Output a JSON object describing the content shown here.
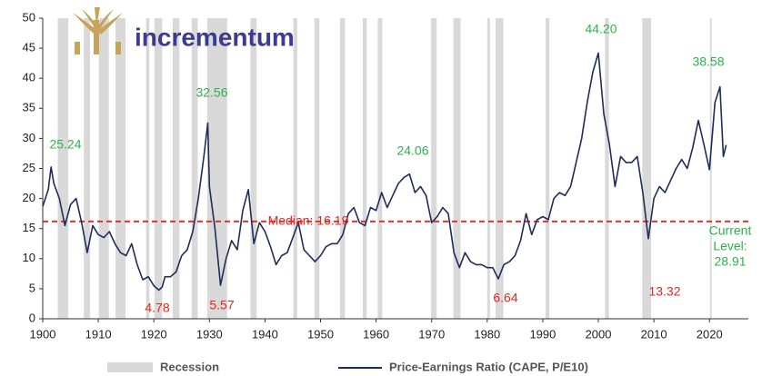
{
  "chart_data": {
    "type": "line",
    "brand": "incrementum",
    "xlim": [
      1900,
      2027
    ],
    "xticks": [
      1900,
      1910,
      1920,
      1930,
      1940,
      1950,
      1960,
      1970,
      1980,
      1990,
      2000,
      2010,
      2020
    ],
    "ylim": [
      0,
      50
    ],
    "yticks": [
      0,
      5,
      10,
      15,
      20,
      25,
      30,
      35,
      40,
      45,
      50
    ],
    "grid": false,
    "recession_name": "Recession",
    "recession_color": "#d9d9d9",
    "recessions": [
      [
        1902.7,
        1904.6
      ],
      [
        1907.4,
        1908.5
      ],
      [
        1910.1,
        1911.9
      ],
      [
        1913.1,
        1914.9
      ],
      [
        1918.6,
        1919.2
      ],
      [
        1920.1,
        1921.5
      ],
      [
        1923.4,
        1924.6
      ],
      [
        1926.8,
        1927.9
      ],
      [
        1929.6,
        1933.2
      ],
      [
        1937.4,
        1938.5
      ],
      [
        1945.1,
        1945.8
      ],
      [
        1948.9,
        1949.8
      ],
      [
        1953.5,
        1954.4
      ],
      [
        1957.6,
        1958.3
      ],
      [
        1960.3,
        1961.1
      ],
      [
        1969.9,
        1970.9
      ],
      [
        1973.9,
        1975.2
      ],
      [
        1980.0,
        1980.5
      ],
      [
        1981.5,
        1982.9
      ],
      [
        1990.5,
        1991.2
      ],
      [
        2001.2,
        2001.9
      ],
      [
        2007.9,
        2009.5
      ],
      [
        2020.1,
        2020.4
      ]
    ],
    "median": 16.19,
    "median_color": "#e8251d",
    "series": [
      {
        "name": "Price-Earnings Ratio (CAPE, P/E10)",
        "color": "#1f2d5a",
        "x": [
          1900,
          1901,
          1901.5,
          1902,
          1903,
          1904,
          1905,
          1906,
          1907,
          1908,
          1909,
          1910,
          1911,
          1912,
          1913,
          1914,
          1915,
          1916,
          1917,
          1918,
          1919,
          1920,
          1920.9,
          1921.5,
          1922,
          1923,
          1924,
          1925,
          1926,
          1927,
          1928,
          1929,
          1929.7,
          1930,
          1931,
          1932,
          1933,
          1934,
          1935,
          1936,
          1937,
          1938,
          1939,
          1940,
          1941,
          1942,
          1943,
          1944,
          1945,
          1946,
          1947,
          1948,
          1949,
          1950,
          1951,
          1952,
          1953,
          1954,
          1955,
          1956,
          1957,
          1958,
          1959,
          1960,
          1961,
          1962,
          1963,
          1964,
          1965,
          1966,
          1967,
          1968,
          1969,
          1970,
          1971,
          1972,
          1973,
          1974,
          1975,
          1976,
          1977,
          1978,
          1979,
          1980,
          1981,
          1982,
          1983,
          1984,
          1985,
          1986,
          1987,
          1988,
          1989,
          1990,
          1991,
          1992,
          1993,
          1994,
          1995,
          1996,
          1997,
          1998,
          1999,
          2000,
          2001,
          2002,
          2003,
          2004,
          2005,
          2006,
          2007,
          2008,
          2009,
          2010,
          2011,
          2012,
          2013,
          2014,
          2015,
          2016,
          2017,
          2018,
          2019,
          2020,
          2021,
          2021.9,
          2022.5,
          2023
        ],
        "values": [
          18.7,
          21.5,
          25.24,
          22.5,
          20,
          15.5,
          19,
          20,
          16,
          11,
          15.5,
          14,
          13.5,
          14.5,
          12.5,
          11,
          10.5,
          12.5,
          9,
          6.5,
          7,
          5.5,
          4.78,
          5.3,
          7,
          7,
          7.8,
          10.5,
          11.5,
          14.5,
          20,
          27,
          32.56,
          22,
          15,
          5.57,
          10,
          13,
          11.5,
          18,
          21.5,
          12.5,
          16,
          14.5,
          12,
          9,
          10.5,
          11,
          13.5,
          16,
          11.5,
          10.5,
          9.5,
          10.5,
          12,
          12.5,
          12.5,
          14,
          17.5,
          18.5,
          16,
          15.5,
          18.5,
          18,
          21,
          18.5,
          20.5,
          22.5,
          23.5,
          24.06,
          21,
          22,
          20.5,
          16,
          17,
          18.5,
          17.5,
          11,
          8.5,
          11,
          9.5,
          9,
          9,
          8.5,
          8.5,
          6.64,
          9,
          9.5,
          10.5,
          13,
          17.5,
          14,
          16.5,
          17,
          16.5,
          20,
          21,
          20.5,
          22,
          26,
          30,
          36,
          41,
          44.2,
          34,
          29,
          22,
          27,
          26,
          26,
          27,
          21,
          13.32,
          20,
          22,
          21,
          23,
          25,
          26.5,
          25,
          28.5,
          33,
          29,
          24.8,
          36,
          38.58,
          27,
          28.91
        ]
      }
    ],
    "annotations": [
      {
        "lines": [
          "25.24"
        ],
        "color": "#2db34a"
      },
      {
        "lines": [
          "32.56"
        ],
        "color": "#2db34a"
      },
      {
        "lines": [
          "4.78"
        ],
        "color": "#e8251d"
      },
      {
        "lines": [
          "5.57"
        ],
        "color": "#e8251d"
      },
      {
        "lines": [
          "Median: 16.19"
        ],
        "color": "#e8251d"
      },
      {
        "lines": [
          "24.06"
        ],
        "color": "#2db34a"
      },
      {
        "lines": [
          "6.64"
        ],
        "color": "#e8251d"
      },
      {
        "lines": [
          "44.20"
        ],
        "color": "#2db34a"
      },
      {
        "lines": [
          "13.32"
        ],
        "color": "#e8251d"
      },
      {
        "lines": [
          "38.58"
        ],
        "color": "#2db34a"
      },
      {
        "lines": [
          "Current",
          "Level:",
          "28.91"
        ],
        "color": "#2db34a"
      }
    ]
  }
}
